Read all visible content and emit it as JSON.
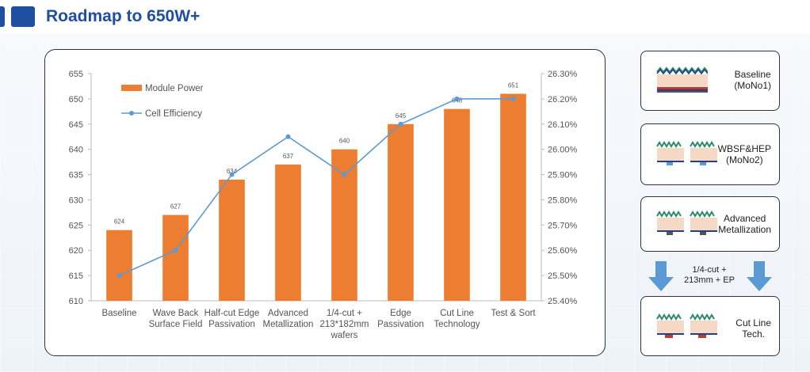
{
  "header": {
    "title": "Roadmap to 650W+"
  },
  "colors": {
    "bar": "#ed7d31",
    "line": "#5b9bd5",
    "brand": "#1e4fa0"
  },
  "chart_data": {
    "type": "bar",
    "categories": [
      [
        "Baseline"
      ],
      [
        "Wave Back",
        "Surface Field"
      ],
      [
        "Half-cut Edge",
        "Passivation"
      ],
      [
        "Advanced",
        "Metallization"
      ],
      [
        "1/4-cut +",
        "213*182mm",
        "wafers"
      ],
      [
        "Edge",
        "Passivation"
      ],
      [
        "Cut Line",
        "Technology"
      ],
      [
        "Test & Sort"
      ]
    ],
    "series": [
      {
        "name": "Module Power",
        "type": "bar",
        "axis": "left",
        "values": [
          624,
          627,
          634,
          637,
          640,
          645,
          648,
          651
        ]
      },
      {
        "name": "Cell Efficiency",
        "type": "line",
        "axis": "right",
        "values": [
          25.5,
          25.6,
          25.9,
          26.05,
          25.9,
          26.1,
          26.2,
          26.2
        ]
      }
    ],
    "data_labels": [
      "624",
      "627",
      "634",
      "637",
      "640",
      "645",
      "648",
      "651"
    ],
    "ylim_left": [
      610,
      655
    ],
    "yticks_left": [
      "610",
      "615",
      "620",
      "625",
      "630",
      "635",
      "640",
      "645",
      "650",
      "655"
    ],
    "ylim_right": [
      25.4,
      26.3
    ],
    "yticks_right": [
      "25.40%",
      "25.50%",
      "25.60%",
      "25.70%",
      "25.80%",
      "25.90%",
      "26.00%",
      "26.10%",
      "26.20%",
      "26.30%"
    ],
    "legend": [
      "Module Power",
      "Cell Efficiency"
    ],
    "legend_position": "top-left",
    "grid": false
  },
  "cards": [
    {
      "label_lines": [
        "Baseline",
        "(MoNo1)"
      ],
      "icon": "solar-cell-cross-section-icon"
    },
    {
      "label_lines": [
        "WBSF&HEP",
        "(MoNo2)"
      ],
      "icon": "half-cut-cell-icon"
    },
    {
      "label_lines": [
        "Advanced",
        "Metallization"
      ],
      "icon": "half-cut-cell-icon"
    },
    {
      "label_lines": [
        "Cut Line",
        "Tech."
      ],
      "icon": "half-cut-cell-icon"
    }
  ],
  "transition_label": [
    "1/4-cut +",
    "213mm + EP"
  ]
}
